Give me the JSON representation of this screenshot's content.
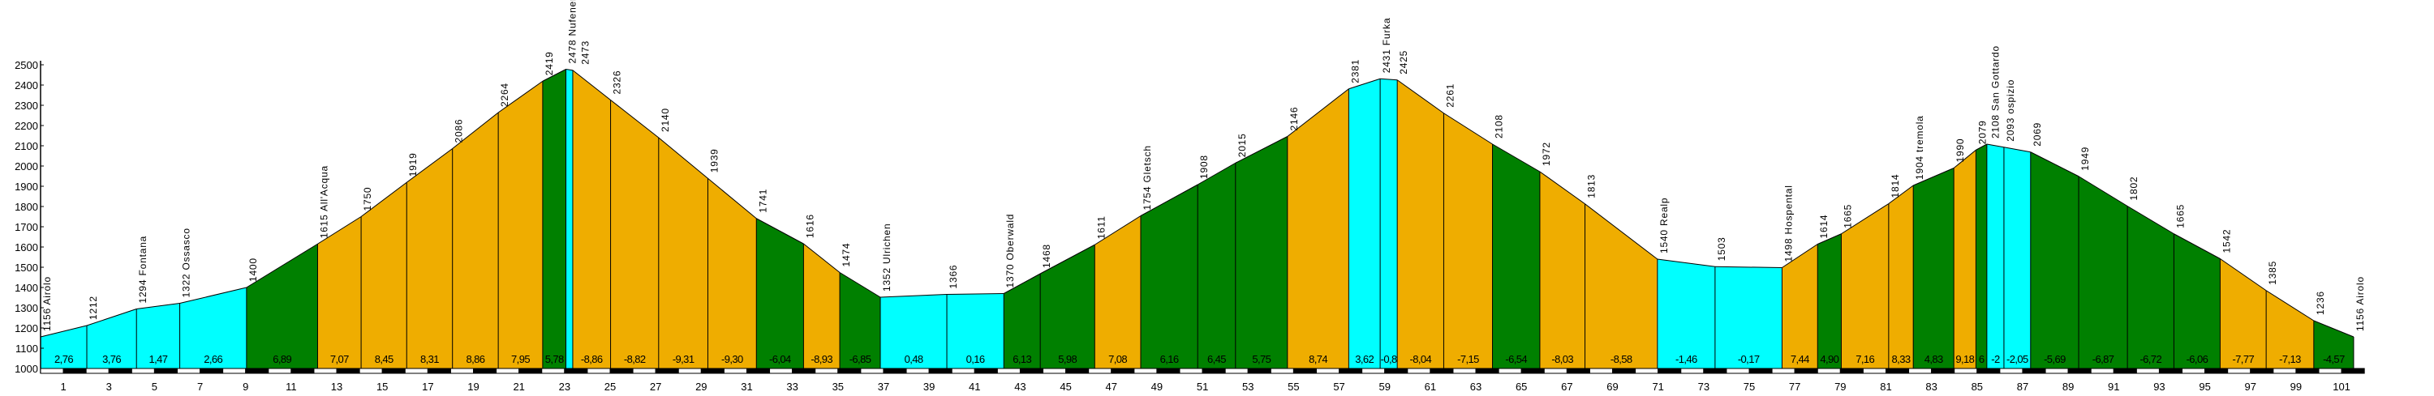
{
  "chart_data": {
    "type": "area",
    "title": "",
    "xlabel": "",
    "ylabel": "",
    "ylim": [
      1000,
      2500
    ],
    "xlim": [
      0,
      101.55
    ],
    "y_ticks": [
      1000,
      1100,
      1200,
      1300,
      1400,
      1500,
      1600,
      1700,
      1800,
      1900,
      2000,
      2100,
      2200,
      2300,
      2400,
      2500
    ],
    "x_ticks": [
      1,
      3,
      5,
      7,
      9,
      11,
      13,
      15,
      17,
      19,
      21,
      23,
      25,
      27,
      29,
      31,
      33,
      35,
      37,
      39,
      41,
      43,
      45,
      47,
      49,
      51,
      53,
      55,
      57,
      59,
      61,
      63,
      65,
      67,
      69,
      71,
      73,
      75,
      77,
      79,
      81,
      83,
      85,
      87,
      89,
      91,
      93,
      95,
      97,
      99,
      101
    ],
    "grid": false,
    "colors": {
      "cyan": "#00FFFF",
      "green": "#008000",
      "orange": "#EFAD00",
      "outline": "#000000"
    },
    "points": [
      {
        "km": 0,
        "elev": 1156,
        "name": "Airolo"
      },
      {
        "km": 2.03,
        "elev": 1212,
        "name": ""
      },
      {
        "km": 4.21,
        "elev": 1294,
        "name": "Fontana"
      },
      {
        "km": 6.11,
        "elev": 1322,
        "name": "Ossasco"
      },
      {
        "km": 9.04,
        "elev": 1400,
        "name": ""
      },
      {
        "km": 12.16,
        "elev": 1615,
        "name": "All'Acqua"
      },
      {
        "km": 14.07,
        "elev": 1750,
        "name": ""
      },
      {
        "km": 16.07,
        "elev": 1919,
        "name": ""
      },
      {
        "km": 18.08,
        "elev": 2086,
        "name": ""
      },
      {
        "km": 20.09,
        "elev": 2264,
        "name": ""
      },
      {
        "km": 22.04,
        "elev": 2419,
        "name": ""
      },
      {
        "km": 23.06,
        "elev": 2478,
        "name": "Nufenen"
      },
      {
        "km": 23.36,
        "elev": 2473,
        "name": ""
      },
      {
        "km": 25.02,
        "elev": 2326,
        "name": ""
      },
      {
        "km": 27.13,
        "elev": 2140,
        "name": ""
      },
      {
        "km": 29.29,
        "elev": 1939,
        "name": ""
      },
      {
        "km": 31.42,
        "elev": 1741,
        "name": ""
      },
      {
        "km": 33.49,
        "elev": 1616,
        "name": ""
      },
      {
        "km": 35.08,
        "elev": 1474,
        "name": ""
      },
      {
        "km": 36.86,
        "elev": 1352,
        "name": "Ulrichen"
      },
      {
        "km": 39.78,
        "elev": 1366,
        "name": ""
      },
      {
        "km": 42.28,
        "elev": 1370,
        "name": "Oberwald"
      },
      {
        "km": 43.88,
        "elev": 1468,
        "name": ""
      },
      {
        "km": 46.27,
        "elev": 1611,
        "name": ""
      },
      {
        "km": 48.29,
        "elev": 1754,
        "name": "Gletsch"
      },
      {
        "km": 50.79,
        "elev": 1908,
        "name": ""
      },
      {
        "km": 52.45,
        "elev": 2015,
        "name": ""
      },
      {
        "km": 54.73,
        "elev": 2146,
        "name": ""
      },
      {
        "km": 57.42,
        "elev": 2381,
        "name": ""
      },
      {
        "km": 58.8,
        "elev": 2431,
        "name": "Furka"
      },
      {
        "km": 59.55,
        "elev": 2425,
        "name": ""
      },
      {
        "km": 61.59,
        "elev": 2261,
        "name": ""
      },
      {
        "km": 63.73,
        "elev": 2108,
        "name": ""
      },
      {
        "km": 65.81,
        "elev": 1972,
        "name": ""
      },
      {
        "km": 67.79,
        "elev": 1813,
        "name": ""
      },
      {
        "km": 70.97,
        "elev": 1540,
        "name": "Realp"
      },
      {
        "km": 73.5,
        "elev": 1503,
        "name": ""
      },
      {
        "km": 76.44,
        "elev": 1498,
        "name": "Hospental"
      },
      {
        "km": 78.0,
        "elev": 1614,
        "name": ""
      },
      {
        "km": 79.04,
        "elev": 1665,
        "name": ""
      },
      {
        "km": 81.12,
        "elev": 1814,
        "name": ""
      },
      {
        "km": 82.2,
        "elev": 1904,
        "name": "tremola"
      },
      {
        "km": 83.98,
        "elev": 1990,
        "name": ""
      },
      {
        "km": 84.95,
        "elev": 2079,
        "name": ""
      },
      {
        "km": 85.43,
        "elev": 2108,
        "name": "San Gottardo"
      },
      {
        "km": 86.18,
        "elev": 2093,
        "name": "ospizio"
      },
      {
        "km": 87.35,
        "elev": 2069,
        "name": ""
      },
      {
        "km": 89.46,
        "elev": 1949,
        "name": ""
      },
      {
        "km": 91.6,
        "elev": 1802,
        "name": ""
      },
      {
        "km": 93.64,
        "elev": 1665,
        "name": ""
      },
      {
        "km": 95.67,
        "elev": 1542,
        "name": ""
      },
      {
        "km": 97.69,
        "elev": 1385,
        "name": ""
      },
      {
        "km": 99.78,
        "elev": 1236,
        "name": ""
      },
      {
        "km": 101.53,
        "elev": 1156,
        "name": "Airolo"
      }
    ],
    "segments": [
      {
        "grade": "2,76",
        "color": "cyan"
      },
      {
        "grade": "3,76",
        "color": "cyan"
      },
      {
        "grade": "1,47",
        "color": "cyan"
      },
      {
        "grade": "2,66",
        "color": "cyan"
      },
      {
        "grade": "6,89",
        "color": "green"
      },
      {
        "grade": "7,07",
        "color": "orange"
      },
      {
        "grade": "8,45",
        "color": "orange"
      },
      {
        "grade": "8,31",
        "color": "orange"
      },
      {
        "grade": "8,86",
        "color": "orange"
      },
      {
        "grade": "7,95",
        "color": "orange"
      },
      {
        "grade": "5,78",
        "color": "green"
      },
      {
        "grade": "",
        "color": "cyan"
      },
      {
        "grade": "-8,86",
        "color": "orange"
      },
      {
        "grade": "-8,82",
        "color": "orange"
      },
      {
        "grade": "-9,31",
        "color": "orange"
      },
      {
        "grade": "-9,30",
        "color": "orange"
      },
      {
        "grade": "-6,04",
        "color": "green"
      },
      {
        "grade": "-8,93",
        "color": "orange"
      },
      {
        "grade": "-6,85",
        "color": "green"
      },
      {
        "grade": "0,48",
        "color": "cyan"
      },
      {
        "grade": "0,16",
        "color": "cyan"
      },
      {
        "grade": "6,13",
        "color": "green"
      },
      {
        "grade": "5,98",
        "color": "green"
      },
      {
        "grade": "7,08",
        "color": "orange"
      },
      {
        "grade": "6,16",
        "color": "green"
      },
      {
        "grade": "6,45",
        "color": "green"
      },
      {
        "grade": "5,75",
        "color": "green"
      },
      {
        "grade": "8,74",
        "color": "orange"
      },
      {
        "grade": "3,62",
        "color": "cyan"
      },
      {
        "grade": "-0,8",
        "color": "cyan"
      },
      {
        "grade": "-8,04",
        "color": "orange"
      },
      {
        "grade": "-7,15",
        "color": "orange"
      },
      {
        "grade": "-6,54",
        "color": "green"
      },
      {
        "grade": "-8,03",
        "color": "orange"
      },
      {
        "grade": "-8,58",
        "color": "orange"
      },
      {
        "grade": "-1,46",
        "color": "cyan"
      },
      {
        "grade": "-0,17",
        "color": "cyan"
      },
      {
        "grade": "7,44",
        "color": "orange"
      },
      {
        "grade": "4,90",
        "color": "green"
      },
      {
        "grade": "7,16",
        "color": "orange"
      },
      {
        "grade": "8,33",
        "color": "orange"
      },
      {
        "grade": "4,83",
        "color": "green"
      },
      {
        "grade": "9,18",
        "color": "orange"
      },
      {
        "grade": "6",
        "color": "green"
      },
      {
        "grade": "-2",
        "color": "cyan"
      },
      {
        "grade": "-2,05",
        "color": "cyan"
      },
      {
        "grade": "-5,69",
        "color": "green"
      },
      {
        "grade": "-6,87",
        "color": "green"
      },
      {
        "grade": "-6,72",
        "color": "green"
      },
      {
        "grade": "-6,06",
        "color": "green"
      },
      {
        "grade": "-7,77",
        "color": "orange"
      },
      {
        "grade": "-7,13",
        "color": "orange"
      },
      {
        "grade": "-4,57",
        "color": "green"
      }
    ]
  }
}
